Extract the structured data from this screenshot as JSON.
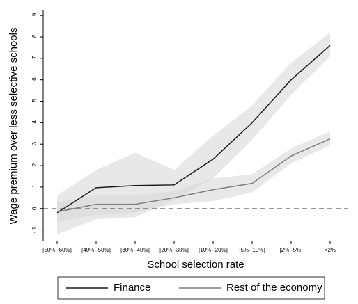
{
  "chart_data": {
    "type": "line",
    "x_label": "School selection rate",
    "y_label": "Wage premium over less selective schools",
    "categories": [
      "[50%--60%]",
      "[40%--50%]",
      "[30%--40%]",
      "[20%--30%]",
      "[10%--20%]",
      "[5%--10%]",
      "[2%--5%]",
      "<2%"
    ],
    "series": [
      {
        "name": "Finance",
        "color": "#1a1a1a",
        "values": [
          -0.02,
          0.097,
          0.107,
          0.11,
          0.23,
          0.4,
          0.6,
          0.76
        ],
        "ci_lower": [
          -0.12,
          -0.05,
          -0.04,
          0.04,
          0.14,
          0.32,
          0.53,
          0.71
        ],
        "ci_upper": [
          0.06,
          0.18,
          0.26,
          0.18,
          0.34,
          0.48,
          0.68,
          0.82
        ]
      },
      {
        "name": "Rest of the economy",
        "color": "#7f7f7f",
        "values": [
          -0.016,
          0.02,
          0.02,
          0.05,
          0.088,
          0.117,
          0.245,
          0.325
        ],
        "ci_lower": [
          -0.06,
          -0.03,
          -0.02,
          0.02,
          0.035,
          0.075,
          0.21,
          0.295
        ],
        "ci_upper": [
          0.03,
          0.06,
          0.06,
          0.08,
          0.14,
          0.16,
          0.28,
          0.36
        ]
      }
    ],
    "band_color": "#d9d9d9",
    "hline": 0,
    "ylim": [
      -0.15,
      0.92
    ],
    "yticks": [
      {
        "value": -0.1,
        "label": "-.1"
      },
      0,
      {
        "value": 0.1,
        "label": ".1"
      },
      {
        "value": 0.2,
        "label": ".2"
      },
      {
        "value": 0.3,
        "label": ".3"
      },
      {
        "value": 0.4,
        "label": ".4"
      },
      {
        "value": 0.5,
        "label": ".5"
      },
      {
        "value": 0.6,
        "label": ".6"
      },
      {
        "value": 0.7,
        "label": ".7"
      },
      {
        "value": 0.8,
        "label": ".8"
      },
      {
        "value": 0.9,
        "label": ".9"
      }
    ],
    "legend": "bottom"
  }
}
